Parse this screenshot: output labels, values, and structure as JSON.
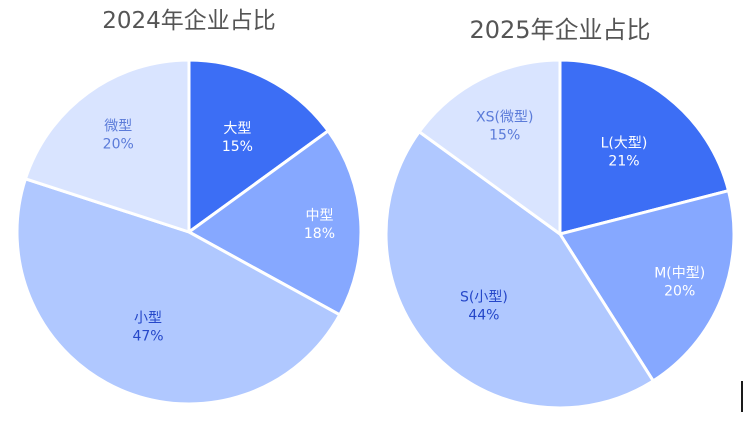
{
  "chart_data": [
    {
      "type": "pie",
      "title": "2024年企业占比",
      "slices": [
        {
          "label": "大型",
          "value": 15,
          "display": "15%",
          "color": "#3c6ef5",
          "text_color": "#ffffff"
        },
        {
          "label": "中型",
          "value": 18,
          "display": "18%",
          "color": "#86a8ff",
          "text_color": "#ffffff"
        },
        {
          "label": "小型",
          "value": 47,
          "display": "47%",
          "color": "#b0c8ff",
          "text_color": "#2547c9"
        },
        {
          "label": "微型",
          "value": 20,
          "display": "20%",
          "color": "#d9e4ff",
          "text_color": "#5b7bd9"
        }
      ]
    },
    {
      "type": "pie",
      "title": "2025年企业占比",
      "slices": [
        {
          "label": "L(大型)",
          "value": 21,
          "display": "21%",
          "color": "#3c6ef5",
          "text_color": "#ffffff"
        },
        {
          "label": "M(中型)",
          "value": 20,
          "display": "20%",
          "color": "#86a8ff",
          "text_color": "#ffffff"
        },
        {
          "label": "S(小型)",
          "value": 44,
          "display": "44%",
          "color": "#b0c8ff",
          "text_color": "#2547c9"
        },
        {
          "label": "XS(微型)",
          "value": 15,
          "display": "15%",
          "color": "#d9e4ff",
          "text_color": "#5b7bd9"
        }
      ]
    }
  ]
}
